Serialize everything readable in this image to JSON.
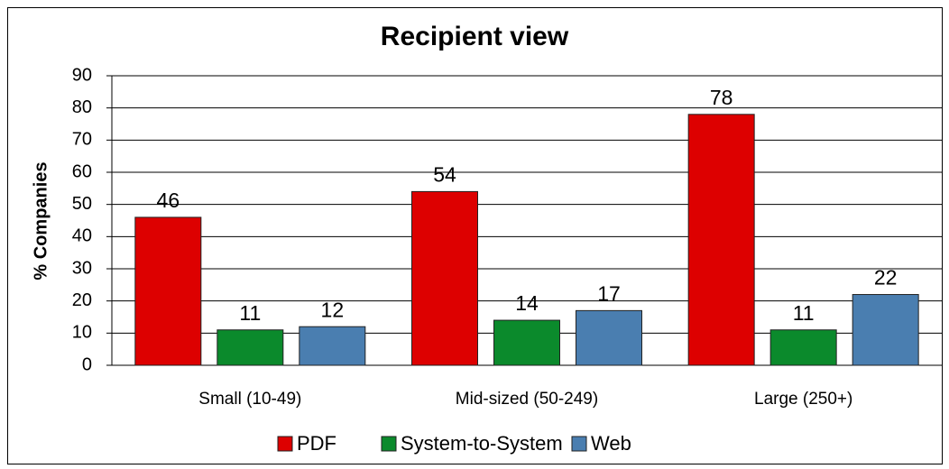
{
  "chart_data": {
    "type": "bar",
    "title": "Recipient view",
    "y_label": "% Companies",
    "categories": [
      "Small (10-49)",
      "Mid-sized (50-249)",
      "Large (250+)"
    ],
    "series": [
      {
        "name": "PDF",
        "color": "#dd0000",
        "values": [
          46,
          54,
          78
        ]
      },
      {
        "name": "System-to-System",
        "color": "#0b8a2c",
        "values": [
          11,
          14,
          11
        ]
      },
      {
        "name": "Web",
        "color": "#4a7eb0",
        "values": [
          12,
          17,
          22
        ]
      }
    ],
    "ylim": [
      0,
      90
    ],
    "yticks": [
      0,
      10,
      20,
      30,
      40,
      50,
      60,
      70,
      80,
      90
    ],
    "grid": true,
    "legend": "bottom"
  }
}
